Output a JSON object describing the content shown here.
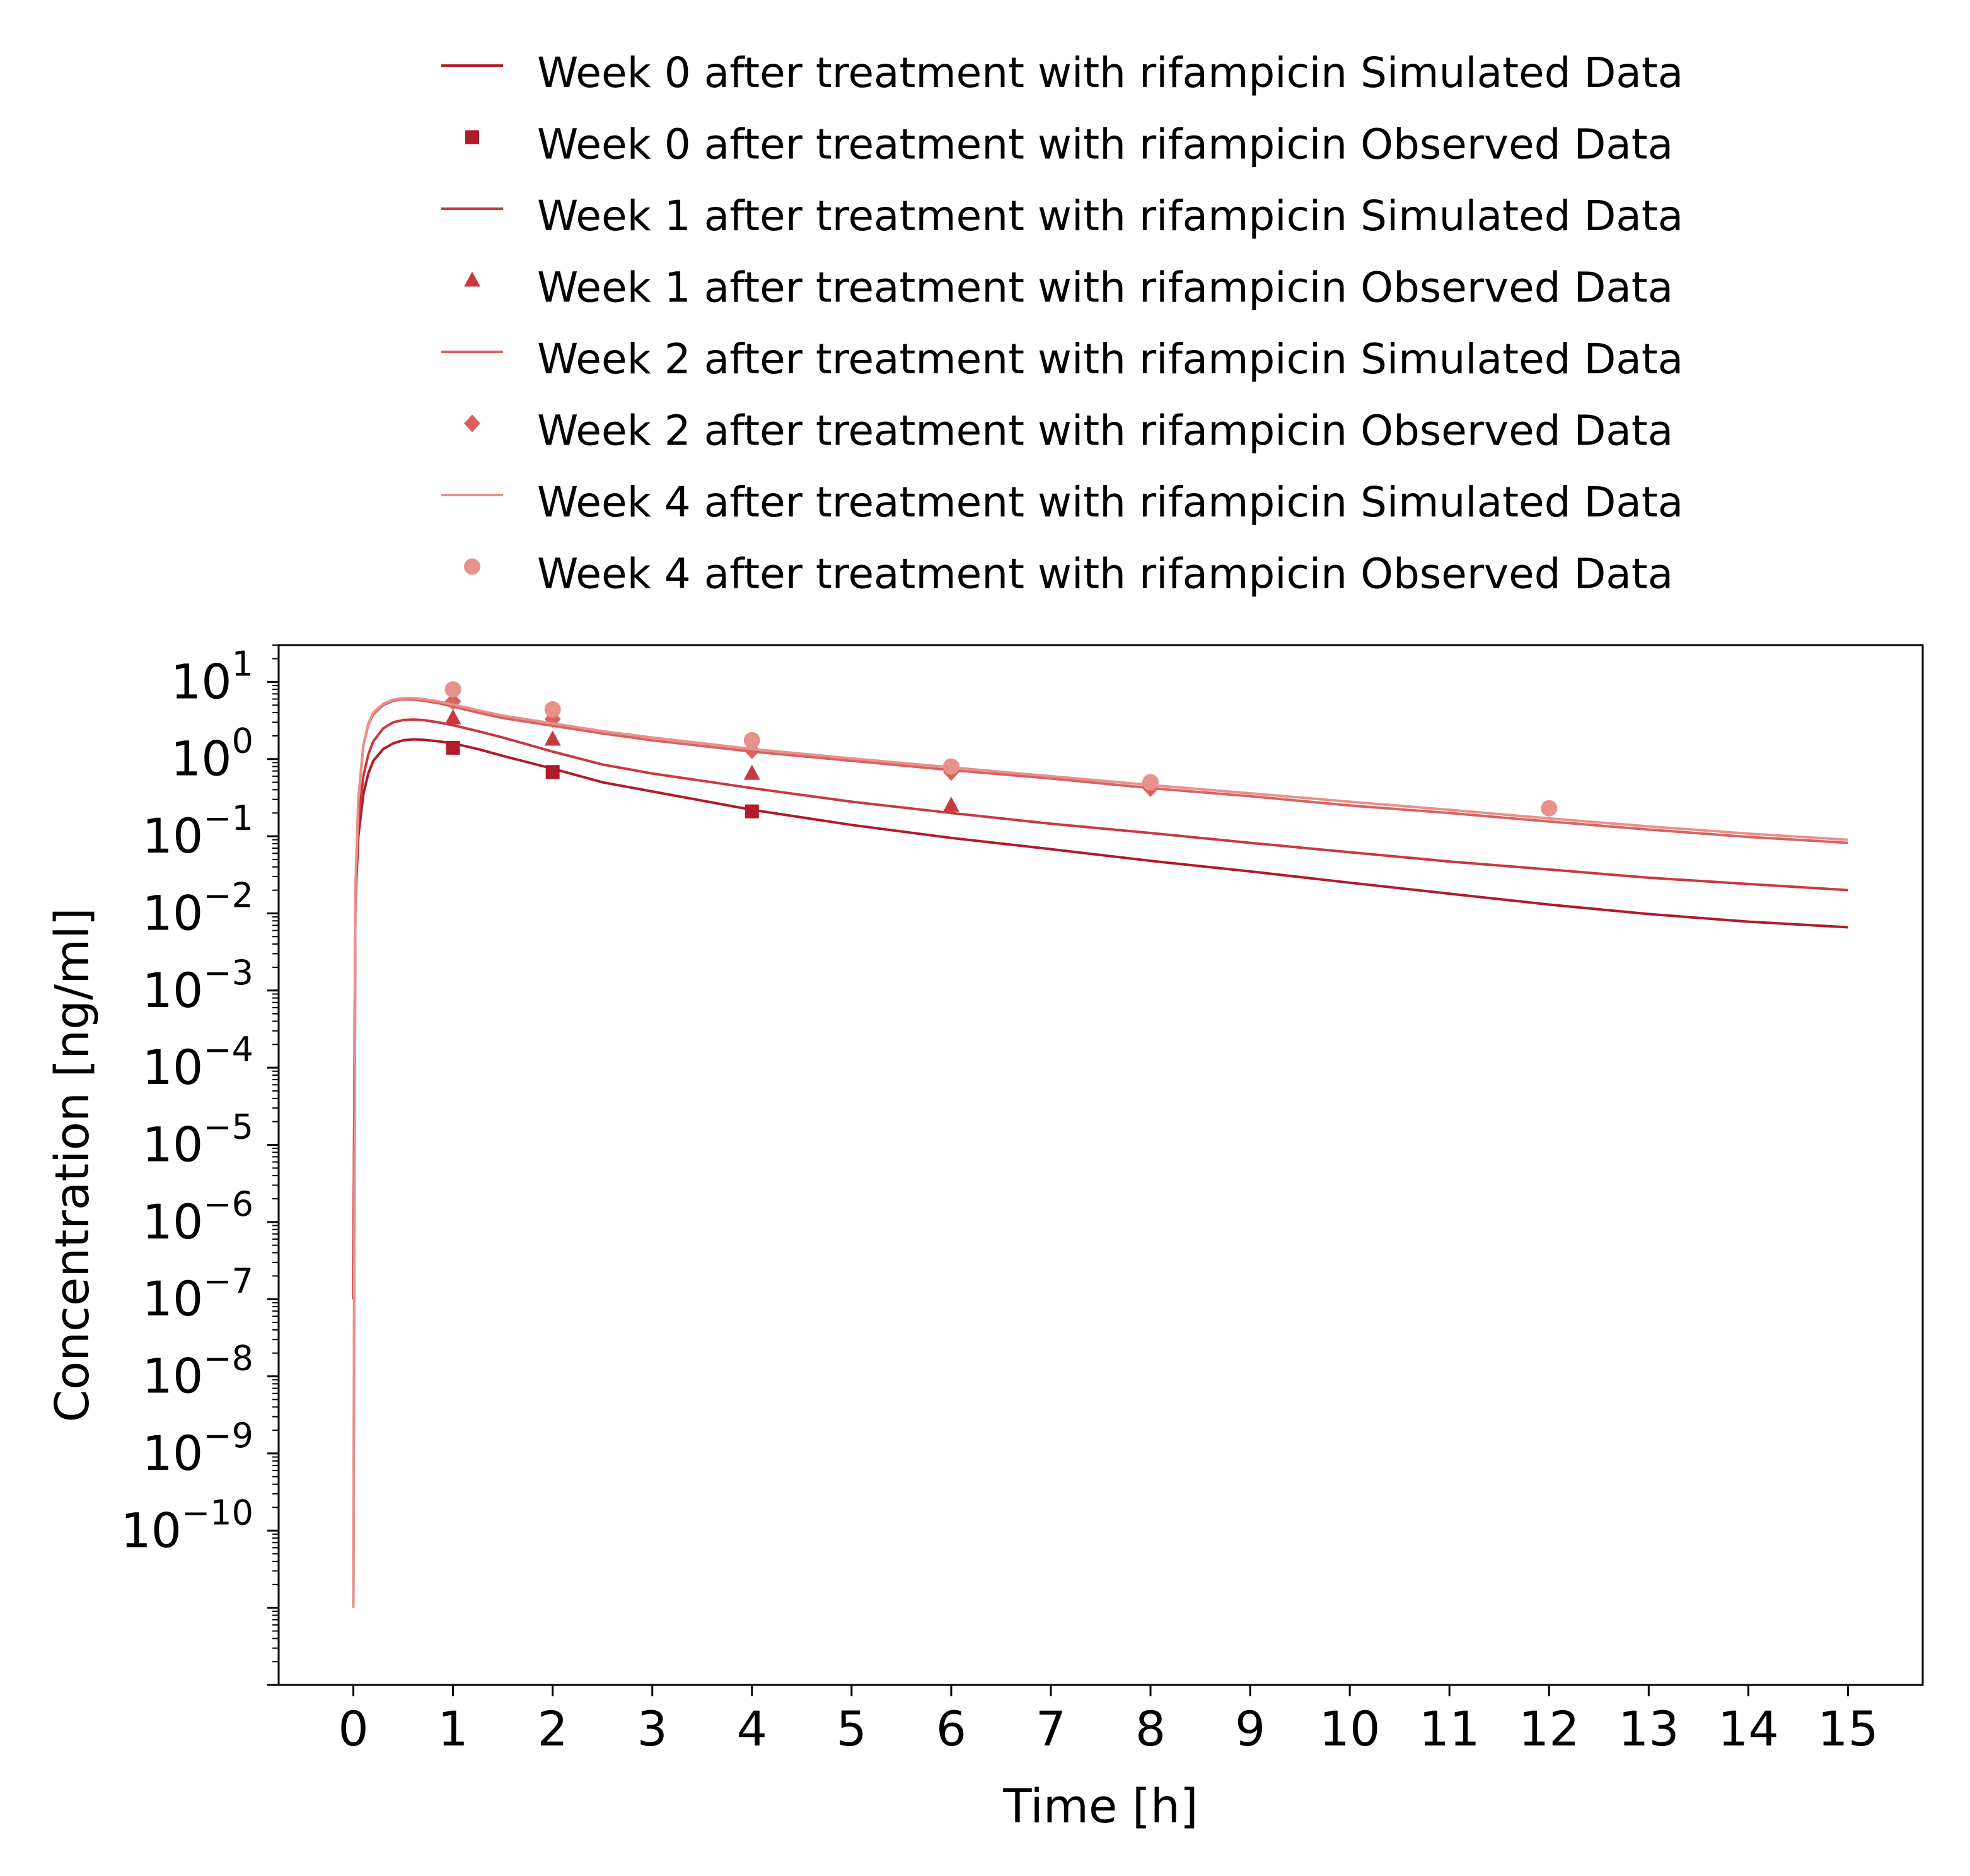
{
  "chart_data": {
    "type": "line",
    "xlabel": "Time [h]",
    "ylabel": "Concentration [ng/ml]",
    "xlim": [
      -0.75,
      15.75
    ],
    "ylim": [
      1e-12,
      30
    ],
    "yscale": "log",
    "grid": false,
    "legend_position": "top",
    "xticks": [
      "0",
      "1",
      "2",
      "3",
      "4",
      "5",
      "6",
      "7",
      "8",
      "9",
      "10",
      "11",
      "12",
      "13",
      "14",
      "15"
    ],
    "yticks": [
      {
        "exp": 1,
        "label": "10",
        "sup": "1"
      },
      {
        "exp": 0,
        "label": "10",
        "sup": "0"
      },
      {
        "exp": -1,
        "label": "10",
        "sup": "−1"
      },
      {
        "exp": -2,
        "label": "10",
        "sup": "−2"
      },
      {
        "exp": -3,
        "label": "10",
        "sup": "−3"
      },
      {
        "exp": -4,
        "label": "10",
        "sup": "−4"
      },
      {
        "exp": -5,
        "label": "10",
        "sup": "−5"
      },
      {
        "exp": -6,
        "label": "10",
        "sup": "−6"
      },
      {
        "exp": -7,
        "label": "10",
        "sup": "−7"
      },
      {
        "exp": -8,
        "label": "10",
        "sup": "−8"
      },
      {
        "exp": -9,
        "label": "10",
        "sup": "−9"
      },
      {
        "exp": -10,
        "label": "10",
        "sup": "−10"
      }
    ],
    "series": [
      {
        "name": "Week 0 after treatment with rifampicin Simulated Data",
        "kind": "line",
        "color": "#b01a2a",
        "x": [
          0,
          0.02,
          0.05,
          0.1,
          0.15,
          0.2,
          0.3,
          0.4,
          0.5,
          0.6,
          0.7,
          0.85,
          1,
          1.25,
          1.5,
          2,
          2.5,
          3,
          4,
          5,
          6,
          7,
          8,
          9,
          10,
          11,
          12,
          13,
          14,
          15
        ],
        "y": [
          1e-07,
          0.013,
          0.1,
          0.35,
          0.65,
          0.95,
          1.35,
          1.6,
          1.75,
          1.8,
          1.78,
          1.7,
          1.6,
          1.35,
          1.1,
          0.75,
          0.5,
          0.38,
          0.22,
          0.14,
          0.095,
          0.068,
          0.048,
          0.035,
          0.025,
          0.018,
          0.013,
          0.0098,
          0.0078,
          0.0066
        ]
      },
      {
        "name": "Week 0 after treatment with rifampicin Observed Data",
        "kind": "marker",
        "marker": "square",
        "color": "#b01a2a",
        "x": [
          1,
          2,
          4
        ],
        "y": [
          1.4,
          0.68,
          0.21
        ]
      },
      {
        "name": "Week 1 after treatment with rifampicin Simulated Data",
        "kind": "line",
        "color": "#c8393f",
        "x": [
          0,
          0.02,
          0.05,
          0.1,
          0.15,
          0.2,
          0.3,
          0.4,
          0.5,
          0.6,
          0.7,
          0.85,
          1,
          1.25,
          1.5,
          2,
          2.5,
          3,
          4,
          5,
          6,
          7,
          8,
          9,
          10,
          11,
          12,
          13,
          14,
          15
        ],
        "y": [
          1e-07,
          0.015,
          0.15,
          0.6,
          1.15,
          1.7,
          2.5,
          3.0,
          3.2,
          3.25,
          3.2,
          3.0,
          2.75,
          2.3,
          1.9,
          1.25,
          0.85,
          0.65,
          0.42,
          0.28,
          0.2,
          0.145,
          0.11,
          0.082,
          0.062,
          0.047,
          0.037,
          0.029,
          0.024,
          0.02
        ]
      },
      {
        "name": "Week 1 after treatment with rifampicin Observed Data",
        "kind": "marker",
        "marker": "triangle",
        "color": "#c8393f",
        "x": [
          1,
          2,
          4,
          6
        ],
        "y": [
          3.4,
          1.8,
          0.65,
          0.25
        ]
      },
      {
        "name": "Week 2 after treatment with rifampicin Simulated Data",
        "kind": "line",
        "color": "#d9625e",
        "x": [
          0,
          0.02,
          0.05,
          0.1,
          0.15,
          0.2,
          0.3,
          0.4,
          0.5,
          0.6,
          0.7,
          0.85,
          1,
          1.25,
          1.5,
          2,
          2.5,
          3,
          4,
          5,
          6,
          7,
          8,
          9,
          10,
          11,
          12,
          13,
          14,
          15
        ],
        "y": [
          1e-11,
          0.02,
          0.3,
          1.5,
          2.8,
          3.8,
          5.0,
          5.7,
          5.95,
          5.9,
          5.7,
          5.3,
          4.8,
          4.0,
          3.4,
          2.7,
          2.15,
          1.75,
          1.25,
          0.95,
          0.72,
          0.56,
          0.42,
          0.33,
          0.25,
          0.2,
          0.155,
          0.122,
          0.098,
          0.082
        ]
      },
      {
        "name": "Week 2 after treatment with rifampicin Observed Data",
        "kind": "marker",
        "marker": "diamond",
        "color": "#d9625e",
        "x": [
          1,
          2,
          4,
          6,
          8
        ],
        "y": [
          5.6,
          3.3,
          1.3,
          0.68,
          0.42
        ]
      },
      {
        "name": "Week 4 after treatment with rifampicin Simulated Data",
        "kind": "line",
        "color": "#e8918b",
        "x": [
          0,
          0.02,
          0.05,
          0.1,
          0.15,
          0.2,
          0.3,
          0.4,
          0.5,
          0.6,
          0.7,
          0.85,
          1,
          1.25,
          1.5,
          2,
          2.5,
          3,
          4,
          5,
          6,
          7,
          8,
          9,
          10,
          11,
          12,
          13,
          14,
          15
        ],
        "y": [
          1e-11,
          0.02,
          0.3,
          1.5,
          2.9,
          4.0,
          5.2,
          5.9,
          6.15,
          6.15,
          6.0,
          5.6,
          5.1,
          4.3,
          3.65,
          2.9,
          2.3,
          1.9,
          1.35,
          1.02,
          0.78,
          0.6,
          0.46,
          0.36,
          0.28,
          0.22,
          0.17,
          0.134,
          0.108,
          0.09
        ]
      },
      {
        "name": "Week 4 after treatment with rifampicin Observed Data",
        "kind": "marker",
        "marker": "circle",
        "color": "#e8918b",
        "x": [
          1,
          2,
          4,
          6,
          8,
          12
        ],
        "y": [
          8.0,
          4.4,
          1.75,
          0.8,
          0.5,
          0.23
        ]
      }
    ]
  }
}
